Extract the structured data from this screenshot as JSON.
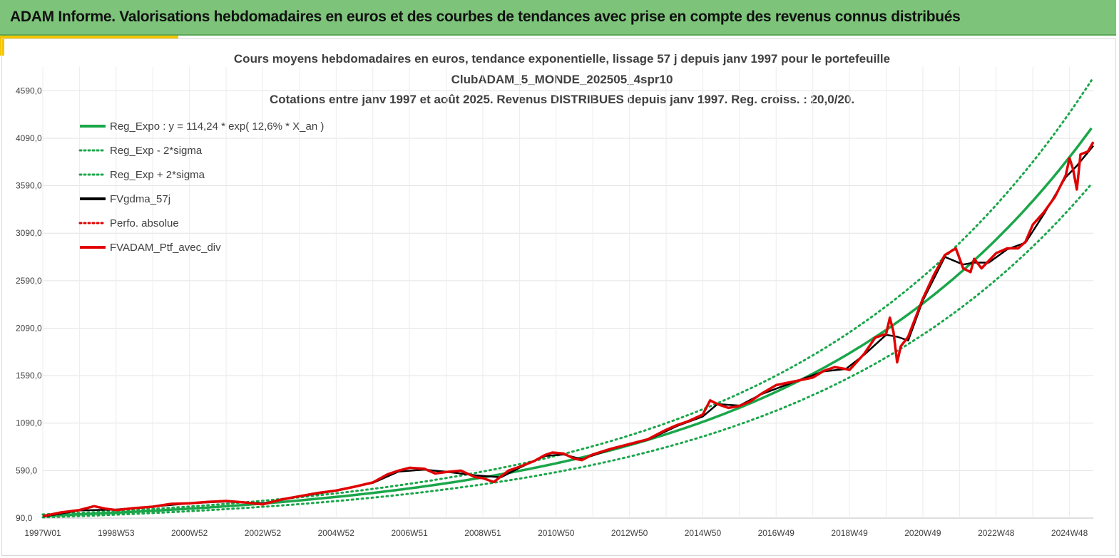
{
  "header": {
    "title": "ADAM Informe. Valorisations hebdomadaires en euros et des courbes de tendances avec prise en compte des revenus connus distribués"
  },
  "colors": {
    "banner": "#7dc47a",
    "accent": "#f5c400",
    "trend": "#1aa64a",
    "smooth": "#000000",
    "portfolio": "#e00000"
  },
  "chart_data": {
    "type": "line",
    "title_lines": [
      "Cours moyens hebdomadaires  en euros, tendance exponentielle, lissage 57 j depuis janv 1997 pour le portefeuille",
      "ClubADAM_5_MONDE_202505_4spr10",
      "Cotations  entre janv 1997 et août 2025. Revenus DISTRIBUES depuis janv 1997. Reg. croiss. : 20,0/20."
    ],
    "xlabel": "",
    "ylabel": "",
    "x_tick_labels": [
      "1997W01",
      "1998W53",
      "2000W52",
      "2002W52",
      "2004W52",
      "2006W51",
      "2008W51",
      "2010W50",
      "2012W50",
      "2014W50",
      "2016W49",
      "2018W49",
      "2020W49",
      "2022W48",
      "2024W48"
    ],
    "y_tick_labels": [
      "90,0",
      "590,0",
      "1090,0",
      "1590,0",
      "2090,0",
      "2590,0",
      "3090,0",
      "3590,0",
      "4090,0",
      "4590,0"
    ],
    "ylim": [
      90,
      4840
    ],
    "xlim": [
      1997.0,
      2025.65
    ],
    "grid": true,
    "legend_position": "top-left",
    "legend": [
      {
        "label": "Reg_Expo : y = 114,24 * exp( 12,6% *  X_an )",
        "style": "solid",
        "color": "#1aa64a"
      },
      {
        "label": "Reg_Exp - 2*sigma",
        "style": "dotted",
        "color": "#1aa64a"
      },
      {
        "label": "Reg_Exp + 2*sigma",
        "style": "dotted",
        "color": "#1aa64a"
      },
      {
        "label": "FVgdma_57j",
        "style": "solid",
        "color": "#000000"
      },
      {
        "label": "Perfo. absolue",
        "style": "dotted",
        "color": "#e00000"
      },
      {
        "label": "FVADAM_Ptf_avec_div",
        "style": "solid",
        "color": "#e00000"
      }
    ],
    "trend": {
      "a": 114.24,
      "b": 0.126,
      "band_factor_low": 0.86,
      "band_factor_high": 1.12
    },
    "series": [
      {
        "name": "FVADAM_Ptf_avec_div",
        "x": [
          1997.0,
          1997.5,
          1998.0,
          1998.4,
          1998.7,
          1999.0,
          1999.5,
          2000.0,
          2000.5,
          2001.0,
          2001.5,
          2002.0,
          2002.5,
          2003.0,
          2003.5,
          2004.0,
          2004.5,
          2005.0,
          2005.5,
          2006.0,
          2006.4,
          2006.7,
          2007.0,
          2007.4,
          2007.7,
          2008.0,
          2008.4,
          2008.8,
          2009.0,
          2009.3,
          2009.7,
          2010.0,
          2010.4,
          2010.7,
          2010.9,
          2011.2,
          2011.5,
          2011.7,
          2012.0,
          2012.5,
          2013.0,
          2013.5,
          2014.0,
          2014.3,
          2014.6,
          2015.0,
          2015.2,
          2015.4,
          2015.7,
          2016.0,
          2016.3,
          2016.6,
          2017.0,
          2017.5,
          2018.0,
          2018.3,
          2018.6,
          2018.9,
          2019.0,
          2019.4,
          2019.7,
          2020.0,
          2020.1,
          2020.2,
          2020.3,
          2020.4,
          2020.6,
          2021.0,
          2021.3,
          2021.6,
          2021.9,
          2022.1,
          2022.3,
          2022.4,
          2022.6,
          2022.8,
          2023.0,
          2023.3,
          2023.6,
          2023.8,
          2024.0,
          2024.3,
          2024.6,
          2024.9,
          2025.0,
          2025.1,
          2025.2,
          2025.3,
          2025.5,
          2025.65
        ],
        "y": [
          110,
          150,
          175,
          215,
          190,
          175,
          195,
          210,
          240,
          245,
          260,
          270,
          255,
          235,
          285,
          320,
          355,
          380,
          420,
          465,
          550,
          590,
          620,
          610,
          560,
          575,
          590,
          520,
          510,
          470,
          590,
          630,
          690,
          755,
          780,
          770,
          715,
          700,
          760,
          820,
          870,
          920,
          1020,
          1070,
          1110,
          1180,
          1330,
          1290,
          1250,
          1270,
          1320,
          1400,
          1490,
          1530,
          1570,
          1640,
          1680,
          1660,
          1650,
          1820,
          1990,
          2030,
          2200,
          2050,
          1730,
          1900,
          2000,
          2400,
          2650,
          2860,
          2930,
          2720,
          2680,
          2820,
          2720,
          2800,
          2880,
          2930,
          2930,
          3000,
          3180,
          3310,
          3470,
          3700,
          3880,
          3760,
          3550,
          3920,
          3950,
          4050
        ]
      },
      {
        "name": "FVgdma_57j",
        "x": [
          1997.0,
          1998.0,
          1999.0,
          2000.0,
          2001.0,
          2002.0,
          2003.0,
          2004.0,
          2005.0,
          2006.0,
          2006.7,
          2007.4,
          2008.0,
          2008.8,
          2009.5,
          2010.0,
          2010.7,
          2011.2,
          2011.7,
          2012.5,
          2013.5,
          2014.3,
          2015.0,
          2015.4,
          2016.0,
          2016.6,
          2017.5,
          2018.3,
          2018.9,
          2019.4,
          2020.0,
          2020.3,
          2020.6,
          2021.0,
          2021.6,
          2022.1,
          2022.4,
          2022.8,
          2023.3,
          2023.8,
          2024.3,
          2024.9,
          2025.2,
          2025.65
        ],
        "y": [
          105,
          170,
          180,
          212,
          245,
          265,
          245,
          318,
          378,
          460,
          580,
          600,
          578,
          540,
          520,
          620,
          745,
          760,
          710,
          815,
          915,
          1060,
          1160,
          1290,
          1275,
          1395,
          1525,
          1635,
          1660,
          1810,
          2020,
          2000,
          1960,
          2380,
          2840,
          2760,
          2780,
          2780,
          2920,
          2990,
          3290,
          3680,
          3800,
          4010
        ]
      }
    ]
  }
}
